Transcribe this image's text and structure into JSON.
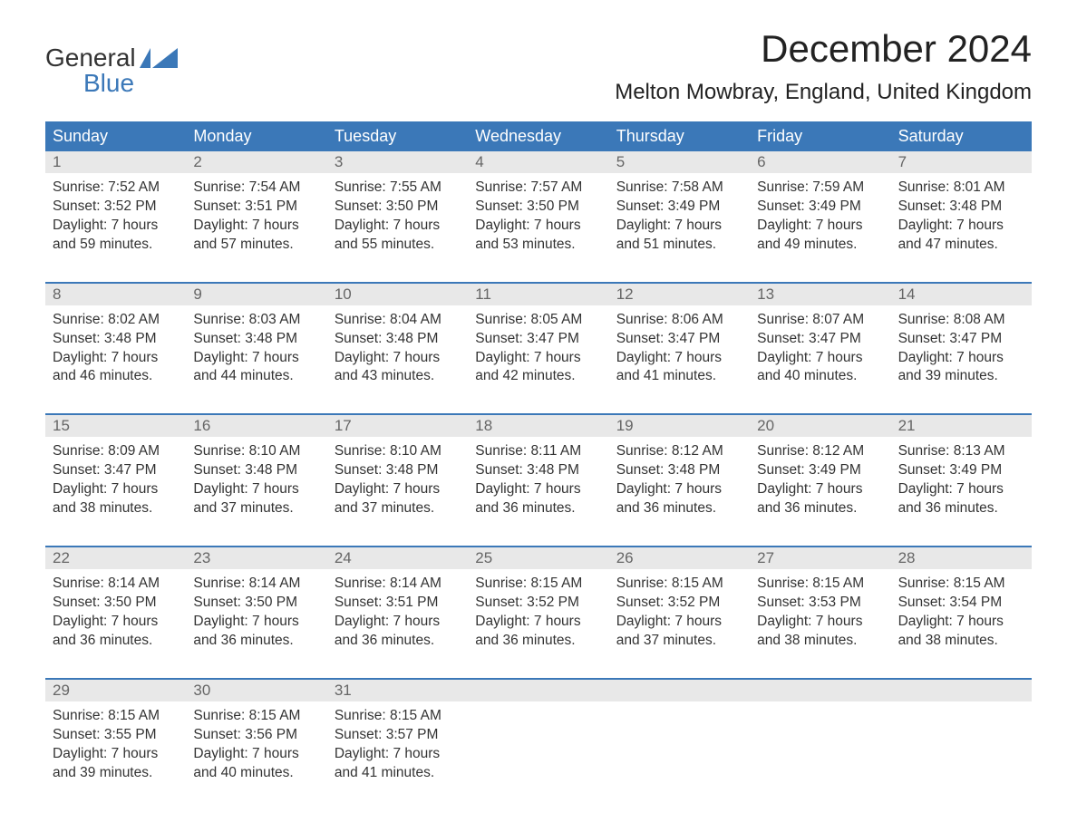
{
  "logo": {
    "line1": "General",
    "line2": "Blue",
    "accent_color": "#3b78b8"
  },
  "title": "December 2024",
  "location": "Melton Mowbray, England, United Kingdom",
  "weekdays": [
    "Sunday",
    "Monday",
    "Tuesday",
    "Wednesday",
    "Thursday",
    "Friday",
    "Saturday"
  ],
  "colors": {
    "header_bg": "#3b78b8",
    "header_text": "#ffffff",
    "daynum_bg": "#e8e8e8",
    "daynum_text": "#666666",
    "body_text": "#333333",
    "week_border": "#3b78b8",
    "background": "#ffffff"
  },
  "weeks": [
    [
      {
        "day": "1",
        "sunrise": "Sunrise: 7:52 AM",
        "sunset": "Sunset: 3:52 PM",
        "dl1": "Daylight: 7 hours",
        "dl2": "and 59 minutes."
      },
      {
        "day": "2",
        "sunrise": "Sunrise: 7:54 AM",
        "sunset": "Sunset: 3:51 PM",
        "dl1": "Daylight: 7 hours",
        "dl2": "and 57 minutes."
      },
      {
        "day": "3",
        "sunrise": "Sunrise: 7:55 AM",
        "sunset": "Sunset: 3:50 PM",
        "dl1": "Daylight: 7 hours",
        "dl2": "and 55 minutes."
      },
      {
        "day": "4",
        "sunrise": "Sunrise: 7:57 AM",
        "sunset": "Sunset: 3:50 PM",
        "dl1": "Daylight: 7 hours",
        "dl2": "and 53 minutes."
      },
      {
        "day": "5",
        "sunrise": "Sunrise: 7:58 AM",
        "sunset": "Sunset: 3:49 PM",
        "dl1": "Daylight: 7 hours",
        "dl2": "and 51 minutes."
      },
      {
        "day": "6",
        "sunrise": "Sunrise: 7:59 AM",
        "sunset": "Sunset: 3:49 PM",
        "dl1": "Daylight: 7 hours",
        "dl2": "and 49 minutes."
      },
      {
        "day": "7",
        "sunrise": "Sunrise: 8:01 AM",
        "sunset": "Sunset: 3:48 PM",
        "dl1": "Daylight: 7 hours",
        "dl2": "and 47 minutes."
      }
    ],
    [
      {
        "day": "8",
        "sunrise": "Sunrise: 8:02 AM",
        "sunset": "Sunset: 3:48 PM",
        "dl1": "Daylight: 7 hours",
        "dl2": "and 46 minutes."
      },
      {
        "day": "9",
        "sunrise": "Sunrise: 8:03 AM",
        "sunset": "Sunset: 3:48 PM",
        "dl1": "Daylight: 7 hours",
        "dl2": "and 44 minutes."
      },
      {
        "day": "10",
        "sunrise": "Sunrise: 8:04 AM",
        "sunset": "Sunset: 3:48 PM",
        "dl1": "Daylight: 7 hours",
        "dl2": "and 43 minutes."
      },
      {
        "day": "11",
        "sunrise": "Sunrise: 8:05 AM",
        "sunset": "Sunset: 3:47 PM",
        "dl1": "Daylight: 7 hours",
        "dl2": "and 42 minutes."
      },
      {
        "day": "12",
        "sunrise": "Sunrise: 8:06 AM",
        "sunset": "Sunset: 3:47 PM",
        "dl1": "Daylight: 7 hours",
        "dl2": "and 41 minutes."
      },
      {
        "day": "13",
        "sunrise": "Sunrise: 8:07 AM",
        "sunset": "Sunset: 3:47 PM",
        "dl1": "Daylight: 7 hours",
        "dl2": "and 40 minutes."
      },
      {
        "day": "14",
        "sunrise": "Sunrise: 8:08 AM",
        "sunset": "Sunset: 3:47 PM",
        "dl1": "Daylight: 7 hours",
        "dl2": "and 39 minutes."
      }
    ],
    [
      {
        "day": "15",
        "sunrise": "Sunrise: 8:09 AM",
        "sunset": "Sunset: 3:47 PM",
        "dl1": "Daylight: 7 hours",
        "dl2": "and 38 minutes."
      },
      {
        "day": "16",
        "sunrise": "Sunrise: 8:10 AM",
        "sunset": "Sunset: 3:48 PM",
        "dl1": "Daylight: 7 hours",
        "dl2": "and 37 minutes."
      },
      {
        "day": "17",
        "sunrise": "Sunrise: 8:10 AM",
        "sunset": "Sunset: 3:48 PM",
        "dl1": "Daylight: 7 hours",
        "dl2": "and 37 minutes."
      },
      {
        "day": "18",
        "sunrise": "Sunrise: 8:11 AM",
        "sunset": "Sunset: 3:48 PM",
        "dl1": "Daylight: 7 hours",
        "dl2": "and 36 minutes."
      },
      {
        "day": "19",
        "sunrise": "Sunrise: 8:12 AM",
        "sunset": "Sunset: 3:48 PM",
        "dl1": "Daylight: 7 hours",
        "dl2": "and 36 minutes."
      },
      {
        "day": "20",
        "sunrise": "Sunrise: 8:12 AM",
        "sunset": "Sunset: 3:49 PM",
        "dl1": "Daylight: 7 hours",
        "dl2": "and 36 minutes."
      },
      {
        "day": "21",
        "sunrise": "Sunrise: 8:13 AM",
        "sunset": "Sunset: 3:49 PM",
        "dl1": "Daylight: 7 hours",
        "dl2": "and 36 minutes."
      }
    ],
    [
      {
        "day": "22",
        "sunrise": "Sunrise: 8:14 AM",
        "sunset": "Sunset: 3:50 PM",
        "dl1": "Daylight: 7 hours",
        "dl2": "and 36 minutes."
      },
      {
        "day": "23",
        "sunrise": "Sunrise: 8:14 AM",
        "sunset": "Sunset: 3:50 PM",
        "dl1": "Daylight: 7 hours",
        "dl2": "and 36 minutes."
      },
      {
        "day": "24",
        "sunrise": "Sunrise: 8:14 AM",
        "sunset": "Sunset: 3:51 PM",
        "dl1": "Daylight: 7 hours",
        "dl2": "and 36 minutes."
      },
      {
        "day": "25",
        "sunrise": "Sunrise: 8:15 AM",
        "sunset": "Sunset: 3:52 PM",
        "dl1": "Daylight: 7 hours",
        "dl2": "and 36 minutes."
      },
      {
        "day": "26",
        "sunrise": "Sunrise: 8:15 AM",
        "sunset": "Sunset: 3:52 PM",
        "dl1": "Daylight: 7 hours",
        "dl2": "and 37 minutes."
      },
      {
        "day": "27",
        "sunrise": "Sunrise: 8:15 AM",
        "sunset": "Sunset: 3:53 PM",
        "dl1": "Daylight: 7 hours",
        "dl2": "and 38 minutes."
      },
      {
        "day": "28",
        "sunrise": "Sunrise: 8:15 AM",
        "sunset": "Sunset: 3:54 PM",
        "dl1": "Daylight: 7 hours",
        "dl2": "and 38 minutes."
      }
    ],
    [
      {
        "day": "29",
        "sunrise": "Sunrise: 8:15 AM",
        "sunset": "Sunset: 3:55 PM",
        "dl1": "Daylight: 7 hours",
        "dl2": "and 39 minutes."
      },
      {
        "day": "30",
        "sunrise": "Sunrise: 8:15 AM",
        "sunset": "Sunset: 3:56 PM",
        "dl1": "Daylight: 7 hours",
        "dl2": "and 40 minutes."
      },
      {
        "day": "31",
        "sunrise": "Sunrise: 8:15 AM",
        "sunset": "Sunset: 3:57 PM",
        "dl1": "Daylight: 7 hours",
        "dl2": "and 41 minutes."
      },
      {
        "day": "",
        "sunrise": "",
        "sunset": "",
        "dl1": "",
        "dl2": ""
      },
      {
        "day": "",
        "sunrise": "",
        "sunset": "",
        "dl1": "",
        "dl2": ""
      },
      {
        "day": "",
        "sunrise": "",
        "sunset": "",
        "dl1": "",
        "dl2": ""
      },
      {
        "day": "",
        "sunrise": "",
        "sunset": "",
        "dl1": "",
        "dl2": ""
      }
    ]
  ]
}
